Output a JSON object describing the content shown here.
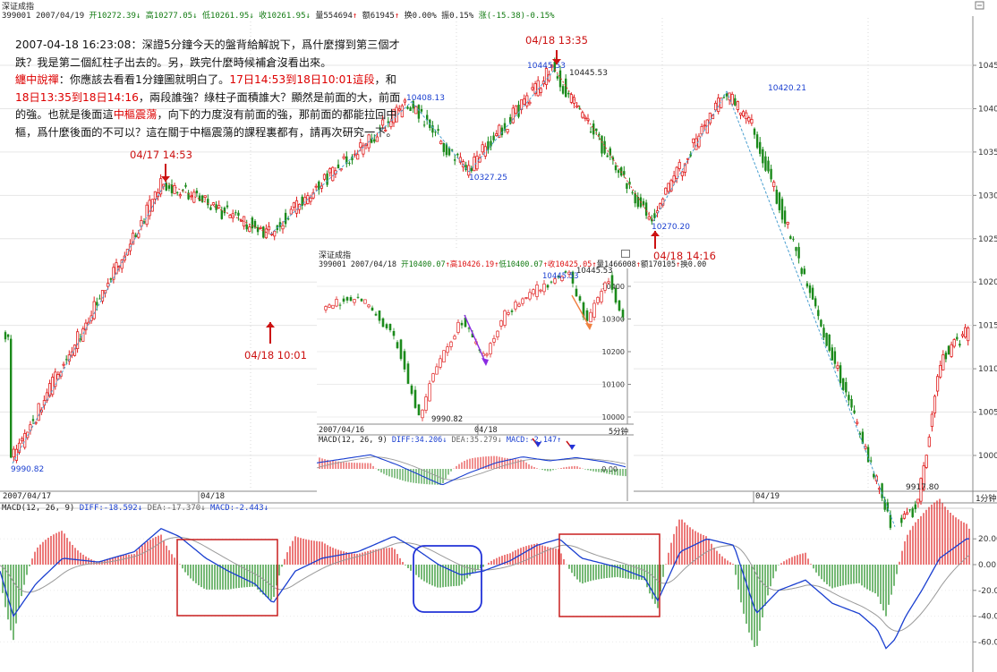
{
  "main": {
    "title": "深证成指",
    "header": {
      "code": "399001",
      "date": "2007/04/19",
      "open": "开10272.39",
      "high": "高10277.05",
      "low": "低10261.95",
      "close": "收10261.95",
      "vol": "量554694",
      "amt": "额61945",
      "turn": "换0.00%",
      "amp": "振0.15%",
      "chg": "涨(-15.38)-0.15%"
    },
    "period": "1分钟",
    "date_labels": [
      "2007/04/17",
      "04/18",
      "04/19"
    ],
    "price_axis": [
      "10450",
      "10400",
      "10350",
      "10300",
      "10250",
      "10200",
      "10150",
      "10100",
      "10050",
      "10000"
    ],
    "price_labels": [
      "9990.82",
      "10408.13",
      "10327.25",
      "10445.53",
      "10445.53",
      "10270.20",
      "10420.21",
      "9917.80"
    ],
    "macd_header": {
      "name": "MACD(12, 26, 9)",
      "diff": "DIFF:-18.592",
      "dea": "DEA:-17.370",
      "macd": "MACD:-2.443"
    },
    "macd_axis": [
      "20.00",
      "0.00",
      "-20.00",
      "-40.00",
      "-60.00"
    ]
  },
  "annotations": {
    "note_line1": "2007-04-18 16:23:08：深證5分鐘今天的盤背給解說下，爲什麼撐到第三個才",
    "note_line2": "跌？我是第二個紅柱子出去的。另，跌完什麼時候補倉沒看出來。",
    "note_tag": "纏中說禪",
    "note_line3": "：你應該去看看1分鐘圖就明白了。",
    "note_red1": "17日14:53到18日10:01這段",
    "note_line3b": "，和",
    "note_red2": "18日13:35到18日14:16",
    "note_line4": "，兩段誰強？綠柱子面積誰大？顯然是前面的大，前面",
    "note_line5a": "的強。也就是後面這",
    "note_red3": "中樞震蕩",
    "note_line5b": "，向下的力度沒有前面的強，那前面的都能拉回中",
    "note_line6": "樞，爲什麼後面的不可以？這在關于中樞震蕩的課程裏都有，請再次研究一下。",
    "point_a": "04/17 14:53",
    "point_b": "04/18 10:01",
    "point_c": "04/18 13:35",
    "point_d": "04/18 14:16"
  },
  "inset": {
    "title": "深证成指",
    "header": {
      "code": "399001",
      "date": "2007/04/18",
      "open": "开10400.07",
      "high": "高10426.19",
      "low": "低10400.07",
      "close": "收10425.05",
      "vol": "量1466008",
      "amt": "额170105",
      "turn": "换0.00"
    },
    "period": "5分钟",
    "date_labels": [
      "2007/04/16",
      "04/18"
    ],
    "price_axis": [
      "10400",
      "10300",
      "10200",
      "10100",
      "10000"
    ],
    "price_labels": [
      "10445.53",
      "10445.53",
      "9990.82"
    ],
    "macd_header": {
      "name": "MACD(12, 26, 9)",
      "diff": "DIFF:34.206",
      "dea": "DEA:35.279",
      "macd": "MACD:-2.147"
    },
    "macd_axis": [
      "0.00"
    ]
  },
  "chart_data": [
    {
      "type": "line",
      "title": "深证成指 1分钟",
      "series": [
        {
          "values": [
            [
              "04/17 open",
              9990.82
            ],
            [
              "04/17 14:53",
              10315
            ],
            [
              "04/18 10:01",
              10255
            ],
            [
              "04/18",
              10408.13
            ],
            [
              "04/18",
              10327.25
            ],
            [
              "04/18 13:35",
              10445.53
            ],
            [
              "04/18 14:16",
              10270.2
            ],
            [
              "04/18",
              10420.21
            ],
            [
              "04/19",
              9917.8
            ],
            [
              "04/19",
              10140
            ]
          ]
        }
      ],
      "ylim": [
        9900,
        10470
      ]
    },
    {
      "type": "bar",
      "title": "MACD(12, 26, 9)",
      "series": [
        {
          "name": "DIFF",
          "values": [
            -18.592
          ]
        },
        {
          "name": "DEA",
          "values": [
            -17.37
          ]
        },
        {
          "name": "MACD",
          "values": [
            -2.443
          ]
        }
      ],
      "ylim": [
        -66,
        30
      ]
    },
    {
      "type": "line",
      "title": "深证成指 5分钟",
      "series": [
        {
          "values": [
            [
              "04/16",
              10330
            ],
            [
              "04/17",
              9990.82
            ],
            [
              "04/18",
              10445.53
            ],
            [
              "04/18",
              10300
            ]
          ]
        }
      ],
      "ylim": [
        9980,
        10460
      ]
    }
  ],
  "colors": {
    "up": "#e02020",
    "down": "#1b8a1b",
    "diff": "#1a3fd0",
    "dea": "#9a9a9a",
    "box_red": "#c81e1e",
    "box_blue": "#2233d8",
    "guide": "#4a9fd0",
    "guide_red": "#e03030"
  }
}
